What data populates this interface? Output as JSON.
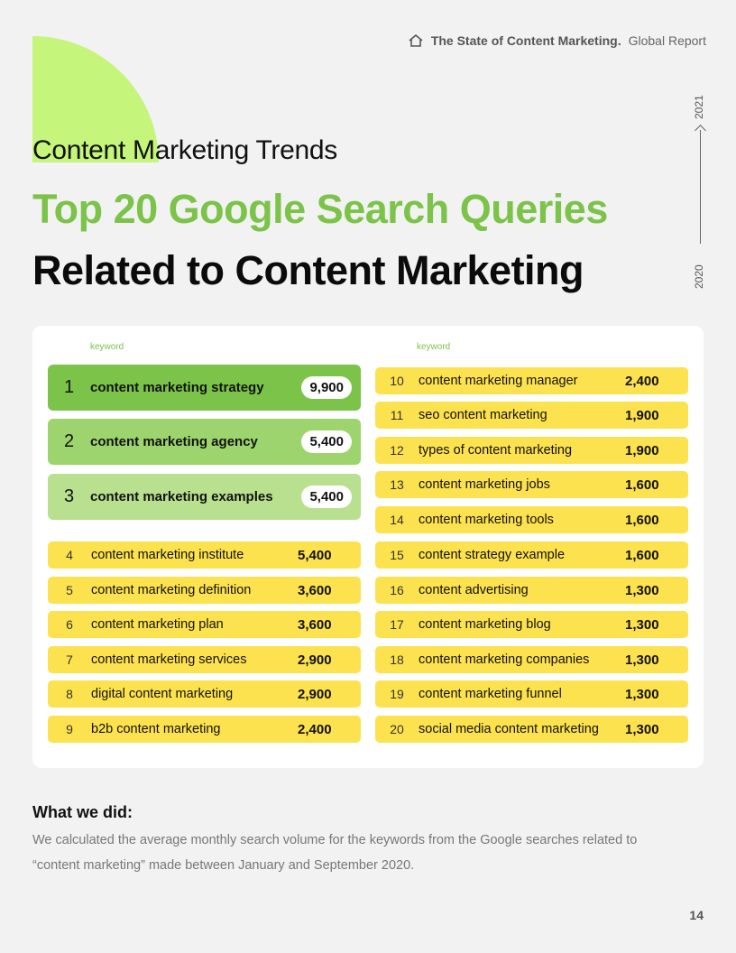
{
  "header": {
    "brand": "The State of Content Marketing.",
    "subtitle": "Global Report"
  },
  "timeline": {
    "year_end": "2021",
    "year_start": "2020"
  },
  "section_label": "Content Marketing Trends",
  "title_line1": "Top 20 Google Search Queries",
  "title_line2": "Related to Content Marketing",
  "table": {
    "col_label_left": "keyword",
    "col_label_right": "keyword",
    "top3": [
      {
        "rank": "1",
        "keyword": "content marketing strategy",
        "volume": "9,900",
        "color": "#7cc34a"
      },
      {
        "rank": "2",
        "keyword": "content marketing agency",
        "volume": "5,400",
        "color": "#9dd46e"
      },
      {
        "rank": "3",
        "keyword": "content marketing examples",
        "volume": "5,400",
        "color": "#b8e08e"
      }
    ],
    "left_rows": [
      {
        "rank": "4",
        "keyword": "content marketing institute",
        "volume": "5,400"
      },
      {
        "rank": "5",
        "keyword": "content marketing definition",
        "volume": "3,600"
      },
      {
        "rank": "6",
        "keyword": "content marketing plan",
        "volume": "3,600"
      },
      {
        "rank": "7",
        "keyword": "content marketing services",
        "volume": "2,900"
      },
      {
        "rank": "8",
        "keyword": "digital content marketing",
        "volume": "2,900"
      },
      {
        "rank": "9",
        "keyword": "b2b content marketing",
        "volume": "2,400"
      }
    ],
    "right_rows": [
      {
        "rank": "10",
        "keyword": "content marketing manager",
        "volume": "2,400"
      },
      {
        "rank": "11",
        "keyword": "seo content marketing",
        "volume": "1,900"
      },
      {
        "rank": "12",
        "keyword": "types of content marketing",
        "volume": "1,900"
      },
      {
        "rank": "13",
        "keyword": "content marketing jobs",
        "volume": "1,600"
      },
      {
        "rank": "14",
        "keyword": "content marketing tools",
        "volume": "1,600"
      },
      {
        "rank": "15",
        "keyword": "content strategy example",
        "volume": "1,600"
      },
      {
        "rank": "16",
        "keyword": "content advertising",
        "volume": "1,300"
      },
      {
        "rank": "17",
        "keyword": "content marketing blog",
        "volume": "1,300"
      },
      {
        "rank": "18",
        "keyword": "content marketing companies",
        "volume": "1,300"
      },
      {
        "rank": "19",
        "keyword": "content marketing funnel",
        "volume": "1,300"
      },
      {
        "rank": "20",
        "keyword": "social media content marketing",
        "volume": "1,300"
      }
    ]
  },
  "what_we_did": {
    "title": "What we did:",
    "text": "We calculated the average monthly search volume for the keywords from the Google searches related to “content marketing” made between January and September 2020."
  },
  "page_number": "14",
  "colors": {
    "accent_green": "#7cc34a",
    "row_yellow": "#fde24f",
    "blob": "#c5f57a"
  }
}
